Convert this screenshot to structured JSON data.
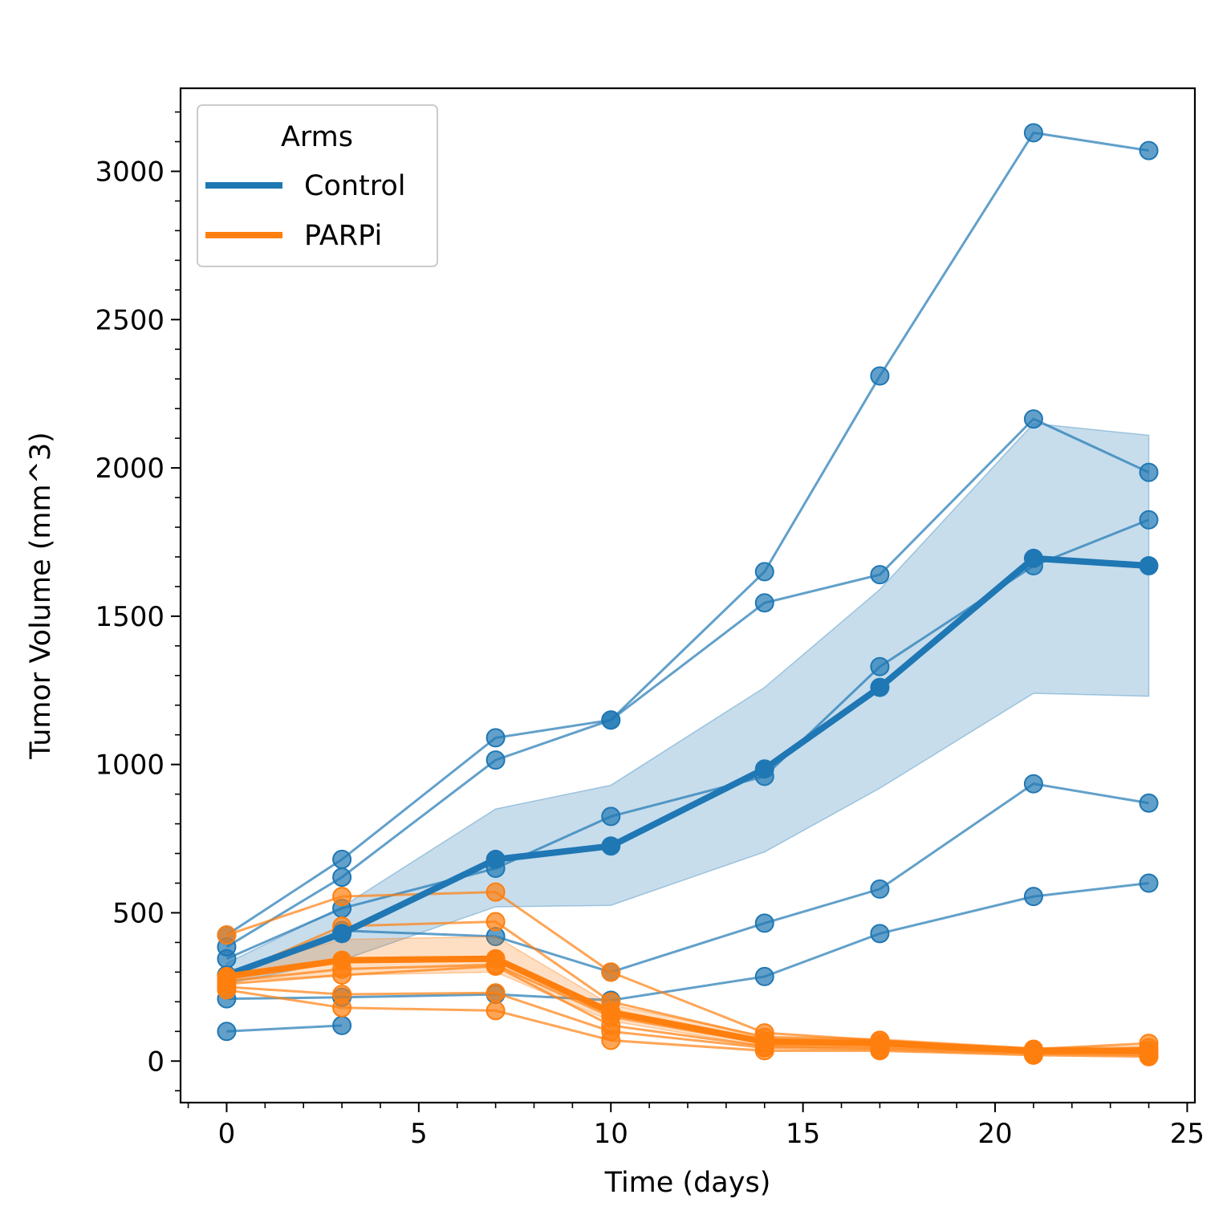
{
  "chart_data": {
    "type": "line",
    "xlabel": "Time (days)",
    "ylabel": "Tumor Volume (mm^3)",
    "xlim": [
      -1.2,
      25.2
    ],
    "ylim": [
      -140,
      3280
    ],
    "xticks": [
      0,
      5,
      10,
      15,
      20,
      25
    ],
    "yticks": [
      0,
      500,
      1000,
      1500,
      2000,
      2500,
      3000
    ],
    "x_minor_step": 1,
    "y_minor_step": 100,
    "grid": false,
    "legend": {
      "title": "Arms",
      "placement": "top-left"
    },
    "x": [
      0,
      3,
      7,
      10,
      14,
      17,
      21,
      24
    ],
    "arms": [
      {
        "name": "Control",
        "color": "#1f77b4",
        "mean": [
          290,
          430,
          680,
          725,
          985,
          1260,
          1695,
          1670
        ],
        "band_upper": [
          330,
          520,
          850,
          930,
          1260,
          1590,
          2150,
          2110
        ],
        "band_lower": [
          260,
          340,
          520,
          525,
          705,
          920,
          1240,
          1230
        ],
        "animals": [
          [
            425,
            680,
            1090,
            1150,
            1650,
            2310,
            3130,
            3070
          ],
          [
            385,
            620,
            1015,
            1150,
            1545,
            1640,
            2165,
            1985
          ],
          [
            345,
            515,
            650,
            825,
            960,
            1330,
            1670,
            1825
          ],
          [
            290,
            440,
            420,
            300,
            465,
            580,
            935,
            870
          ],
          [
            210,
            215,
            225,
            205,
            285,
            430,
            555,
            600
          ],
          [
            100,
            120,
            null,
            null,
            null,
            null,
            null,
            null
          ]
        ]
      },
      {
        "name": "PARPi",
        "color": "#ff7f0e",
        "mean": [
          285,
          340,
          345,
          165,
          65,
          60,
          35,
          35
        ],
        "band_upper": [
          300,
          410,
          420,
          190,
          85,
          75,
          45,
          50
        ],
        "band_lower": [
          270,
          290,
          300,
          135,
          50,
          45,
          25,
          25
        ],
        "animals": [
          [
            425,
            555,
            570,
            300,
            95,
            70,
            40,
            60
          ],
          [
            285,
            455,
            470,
            200,
            80,
            70,
            35,
            45
          ],
          [
            270,
            310,
            325,
            150,
            60,
            55,
            30,
            30
          ],
          [
            260,
            290,
            320,
            120,
            50,
            45,
            30,
            25
          ],
          [
            250,
            225,
            230,
            100,
            45,
            40,
            25,
            20
          ],
          [
            240,
            180,
            170,
            70,
            35,
            35,
            20,
            15
          ]
        ]
      }
    ]
  }
}
